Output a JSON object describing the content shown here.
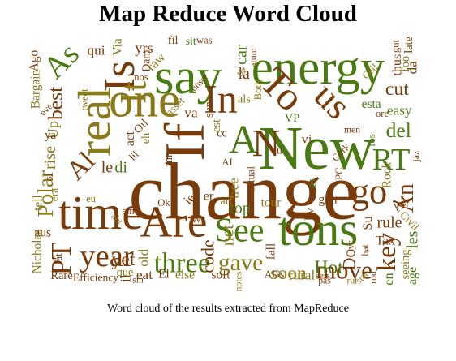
{
  "title": "Map Reduce Word Cloud",
  "caption": "Word cloud of the results extracted from MapReduce",
  "chart_data": {
    "type": "wordcloud",
    "title": "Map Reduce Word Cloud",
    "words": [
      {
        "text": "change",
        "weight": 100,
        "rotation": 0,
        "color": "#7a3b0a"
      },
      {
        "text": "New",
        "weight": 74,
        "rotation": 0,
        "color": "#4a7a12"
      },
      {
        "text": "If",
        "weight": 68,
        "rotation": -90,
        "color": "#7a3b0a"
      },
      {
        "text": "say",
        "weight": 60,
        "rotation": 0,
        "color": "#4a7a12"
      },
      {
        "text": "energy",
        "weight": 58,
        "rotation": 0,
        "color": "#4a7a12"
      },
      {
        "text": "one",
        "weight": 58,
        "rotation": 0,
        "color": "#8a7a1a"
      },
      {
        "text": "time",
        "weight": 56,
        "rotation": 0,
        "color": "#7a3b0a"
      },
      {
        "text": "real",
        "weight": 54,
        "rotation": -90,
        "color": "#8a7a1a"
      },
      {
        "text": "tons",
        "weight": 56,
        "rotation": 0,
        "color": "#4a7a12"
      },
      {
        "text": "Are",
        "weight": 52,
        "rotation": 0,
        "color": "#7a3b0a"
      },
      {
        "text": "Is",
        "weight": 50,
        "rotation": -90,
        "color": "#7a3b0a"
      },
      {
        "text": "It",
        "weight": 42,
        "rotation": -90,
        "color": "#8a7a1a"
      },
      {
        "text": "In",
        "weight": 46,
        "rotation": 0,
        "color": "#7a3b0a"
      },
      {
        "text": "To",
        "weight": 46,
        "rotation": 45,
        "color": "#7a3b0a"
      },
      {
        "text": "us",
        "weight": 42,
        "rotation": 45,
        "color": "#7a3b0a"
      },
      {
        "text": "A",
        "weight": 46,
        "rotation": 0,
        "color": "#4a7a12"
      },
      {
        "text": "N",
        "weight": 44,
        "rotation": 0,
        "color": "#7a3b0a"
      },
      {
        "text": "go",
        "weight": 40,
        "rotation": 0,
        "color": "#7a3b0a"
      },
      {
        "text": "RT",
        "weight": 34,
        "rotation": 0,
        "color": "#4a7a12"
      },
      {
        "text": "See",
        "weight": 38,
        "rotation": 0,
        "color": "#4a7a12"
      },
      {
        "text": "year",
        "weight": 34,
        "rotation": 0,
        "color": "#7a3b0a"
      },
      {
        "text": "three",
        "weight": 30,
        "rotation": 0,
        "color": "#4a7a12"
      },
      {
        "text": "move",
        "weight": 26,
        "rotation": 0,
        "color": "#7a3b0a"
      },
      {
        "text": "As",
        "weight": 34,
        "rotation": -45,
        "color": "#4a7a12"
      },
      {
        "text": "Al",
        "weight": 28,
        "rotation": -45,
        "color": "#7a3b0a"
      },
      {
        "text": "PT",
        "weight": 30,
        "rotation": -90,
        "color": "#7a3b0a"
      },
      {
        "text": "key",
        "weight": 28,
        "rotation": -90,
        "color": "#7a3b0a"
      },
      {
        "text": "gave",
        "weight": 24,
        "rotation": 0,
        "color": "#8a7a1a"
      },
      {
        "text": "An",
        "weight": 24,
        "rotation": -90,
        "color": "#7a3b0a"
      },
      {
        "text": "Polar",
        "weight": 22,
        "rotation": -90,
        "color": "#8a7a1a"
      },
      {
        "text": "best",
        "weight": 20,
        "rotation": -90,
        "color": "#7a3b0a"
      },
      {
        "text": "del",
        "weight": 20,
        "rotation": 0,
        "color": "#4a7a12"
      },
      {
        "text": "cut",
        "weight": 18,
        "rotation": 0,
        "color": "#7a3b0a"
      },
      {
        "text": "soon",
        "weight": 18,
        "rotation": 0,
        "color": "#8a7a1a"
      },
      {
        "text": "Hot",
        "weight": 18,
        "rotation": 0,
        "color": "#4a7a12"
      },
      {
        "text": "yet",
        "weight": 18,
        "rotation": 0,
        "color": "#7a3b0a"
      },
      {
        "text": "code",
        "weight": 16,
        "rotation": -90,
        "color": "#7a3b0a"
      },
      {
        "text": "net",
        "weight": 16,
        "rotation": -90,
        "color": "#8a7a1a"
      },
      {
        "text": "rule",
        "weight": 14,
        "rotation": 0,
        "color": "#7a3b0a"
      },
      {
        "text": "top",
        "weight": 14,
        "rotation": 0,
        "color": "#4a7a12"
      },
      {
        "text": "Do",
        "weight": 16,
        "rotation": -90,
        "color": "#7a3b0a"
      },
      {
        "text": "At",
        "weight": 16,
        "rotation": -45,
        "color": "#7a3b0a"
      },
      {
        "text": "les",
        "weight": 14,
        "rotation": -90,
        "color": "#4a7a12"
      },
      {
        "text": "rise",
        "weight": 14,
        "rotation": -90,
        "color": "#8a7a1a"
      },
      {
        "text": "la",
        "weight": 14,
        "rotation": 0,
        "color": "#7a3b0a"
      },
      {
        "text": "car",
        "weight": 14,
        "rotation": -90,
        "color": "#4a7a12"
      },
      {
        "text": "Up",
        "weight": 12,
        "rotation": -90,
        "color": "#8a7a1a"
      },
      {
        "text": "le",
        "weight": 14,
        "rotation": 0,
        "color": "#7a3b0a"
      },
      {
        "text": "yrs",
        "weight": 12,
        "rotation": 0,
        "color": "#7a3b0a"
      },
      {
        "text": "di",
        "weight": 14,
        "rotation": 0,
        "color": "#4a7a12"
      },
      {
        "text": "va",
        "weight": 11,
        "rotation": 0,
        "color": "#7a3b0a"
      },
      {
        "text": "qui",
        "weight": 11,
        "rotation": 0,
        "color": "#7a3b0a"
      },
      {
        "text": "raw",
        "weight": 10,
        "rotation": -45,
        "color": "#8a7a1a"
      },
      {
        "text": "eat",
        "weight": 11,
        "rotation": 0,
        "color": "#7a3b0a"
      },
      {
        "text": "tree",
        "weight": 11,
        "rotation": -90,
        "color": "#8a7a1a"
      },
      {
        "text": "old",
        "weight": 11,
        "rotation": -90,
        "color": "#8a7a1a"
      },
      {
        "text": "il",
        "weight": 12,
        "rotation": -90,
        "color": "#7a3b0a"
      },
      {
        "text": "rural",
        "weight": 11,
        "rotation": 0,
        "color": "#8a7a1a"
      },
      {
        "text": "age",
        "weight": 10,
        "rotation": -90,
        "color": "#4a7a12"
      },
      {
        "text": "Tax",
        "weight": 10,
        "rotation": 0,
        "color": "#7a3b0a"
      },
      {
        "text": "easy",
        "weight": 11,
        "rotation": 0,
        "color": "#4a7a12"
      },
      {
        "text": "thus",
        "weight": 10,
        "rotation": -90,
        "color": "#7a3b0a"
      },
      {
        "text": "esta",
        "weight": 9,
        "rotation": 0,
        "color": "#4a7a12"
      },
      {
        "text": "da",
        "weight": 11,
        "rotation": -90,
        "color": "#7a3b0a"
      },
      {
        "text": "Via",
        "weight": 9,
        "rotation": -90,
        "color": "#8a7a1a"
      },
      {
        "text": "aus",
        "weight": 9,
        "rotation": 0,
        "color": "#7a3b0a"
      },
      {
        "text": "act",
        "weight": 9,
        "rotation": -90,
        "color": "#7a3b0a"
      },
      {
        "text": "tell",
        "weight": 9,
        "rotation": -90,
        "color": "#8a7a1a"
      },
      {
        "text": "Nicholas",
        "weight": 9,
        "rotation": -90,
        "color": "#8a7a1a"
      },
      {
        "text": "Bargain",
        "weight": 9,
        "rotation": -90,
        "color": "#8a7a1a"
      },
      {
        "text": "Ago",
        "weight": 9,
        "rotation": -90,
        "color": "#7a3b0a"
      },
      {
        "text": "Rare",
        "weight": 8,
        "rotation": 0,
        "color": "#7a3b0a"
      },
      {
        "text": "Efficiency",
        "weight": 7,
        "rotation": 0,
        "color": "#7a3b0a"
      },
      {
        "text": "que",
        "weight": 8,
        "rotation": 0,
        "color": "#8a7a1a"
      },
      {
        "text": "El",
        "weight": 9,
        "rotation": 0,
        "color": "#7a3b0a"
      },
      {
        "text": "else",
        "weight": 9,
        "rotation": 0,
        "color": "#8a7a1a"
      },
      {
        "text": "soft",
        "weight": 9,
        "rotation": 0,
        "color": "#7a3b0a"
      },
      {
        "text": "AGs",
        "weight": 7,
        "rotation": 0,
        "color": "#7a3b0a"
      },
      {
        "text": "Rock",
        "weight": 9,
        "rotation": -90,
        "color": "#8a7a1a"
      },
      {
        "text": "seeing",
        "weight": 8,
        "rotation": -90,
        "color": "#8a7a1a"
      },
      {
        "text": "Civil",
        "weight": 7,
        "rotation": 45,
        "color": "#8a7a1a"
      },
      {
        "text": "late",
        "weight": 8,
        "rotation": -90,
        "color": "#7a3b0a"
      },
      {
        "text": "Too",
        "weight": 8,
        "rotation": -90,
        "color": "#8a7a1a"
      },
      {
        "text": "fall",
        "weight": 9,
        "rotation": -90,
        "color": "#7a3b0a"
      },
      {
        "text": "tour",
        "weight": 9,
        "rotation": 0,
        "color": "#8a7a1a"
      },
      {
        "text": "gun",
        "weight": 9,
        "rotation": 0,
        "color": "#7a3b0a"
      },
      {
        "text": "en",
        "weight": 10,
        "rotation": -90,
        "color": "#4a7a12"
      },
      {
        "text": "hv",
        "weight": 9,
        "rotation": -90,
        "color": "#7a3b0a"
      },
      {
        "text": "Su",
        "weight": 10,
        "rotation": -90,
        "color": "#7a3b0a"
      },
      {
        "text": "mn",
        "weight": 8,
        "rotation": -90,
        "color": "#7a3b0a"
      },
      {
        "text": "eh",
        "weight": 8,
        "rotation": -90,
        "color": "#8a7a1a"
      },
      {
        "text": "er",
        "weight": 10,
        "rotation": 0,
        "color": "#7a3b0a"
      },
      {
        "text": "art",
        "weight": 8,
        "rotation": 0,
        "color": "#8a7a1a"
      },
      {
        "text": "ie",
        "weight": 10,
        "rotation": -45,
        "color": "#7a3b0a"
      },
      {
        "text": "es",
        "weight": 8,
        "rotation": -90,
        "color": "#4a7a12"
      },
      {
        "text": "Wr",
        "weight": 7,
        "rotation": 0,
        "color": "#7a3b0a"
      },
      {
        "text": "cc",
        "weight": 8,
        "rotation": 0,
        "color": "#7a3b0a"
      },
      {
        "text": "als",
        "weight": 8,
        "rotation": 0,
        "color": "#8a7a1a"
      },
      {
        "text": "du",
        "weight": 7,
        "rotation": 0,
        "color": "#7a3b0a"
      },
      {
        "text": "est",
        "weight": 8,
        "rotation": -90,
        "color": "#8a7a1a"
      },
      {
        "text": "sun",
        "weight": 8,
        "rotation": -90,
        "color": "#7a3b0a"
      },
      {
        "text": "VP",
        "weight": 8,
        "rotation": 0,
        "color": "#4a7a12"
      },
      {
        "text": "vi",
        "weight": 10,
        "rotation": 0,
        "color": "#7a3b0a"
      },
      {
        "text": "asset",
        "weight": 7,
        "rotation": -45,
        "color": "#8a7a1a"
      },
      {
        "text": "Darn",
        "weight": 7,
        "rotation": -90,
        "color": "#7a3b0a"
      },
      {
        "text": "fil",
        "weight": 8,
        "rotation": 0,
        "color": "#7a3b0a"
      },
      {
        "text": "sit",
        "weight": 7,
        "rotation": 0,
        "color": "#4a7a12"
      },
      {
        "text": "ya",
        "weight": 8,
        "rotation": 0,
        "color": "#7a3b0a"
      },
      {
        "text": "era",
        "weight": 7,
        "rotation": -90,
        "color": "#8a7a1a"
      },
      {
        "text": "PC",
        "weight": 6,
        "rotation": -90,
        "color": "#7a3b0a"
      },
      {
        "text": "Cork",
        "weight": 6,
        "rotation": -45,
        "color": "#7a3b0a"
      },
      {
        "text": "actual",
        "weight": 7,
        "rotation": -90,
        "color": "#7a3b0a"
      },
      {
        "text": "Oil",
        "weight": 8,
        "rotation": -45,
        "color": "#7a3b0a"
      },
      {
        "text": "tweet",
        "weight": 6,
        "rotation": -90,
        "color": "#8a7a1a"
      },
      {
        "text": "nos",
        "weight": 6,
        "rotation": 0,
        "color": "#7a3b0a"
      },
      {
        "text": "tiz",
        "weight": 6,
        "rotation": -45,
        "color": "#8a7a1a"
      },
      {
        "text": "Both",
        "weight": 6,
        "rotation": -90,
        "color": "#8a7a1a"
      },
      {
        "text": "atum",
        "weight": 5,
        "rotation": -90,
        "color": "#7a3b0a"
      },
      {
        "text": "gut",
        "weight": 6,
        "rotation": -90,
        "color": "#7a3b0a"
      },
      {
        "text": "Cell",
        "weight": 6,
        "rotation": -45,
        "color": "#8a7a1a"
      },
      {
        "text": "ore",
        "weight": 6,
        "rotation": 0,
        "color": "#7a3b0a"
      },
      {
        "text": "fos",
        "weight": 6,
        "rotation": -90,
        "color": "#4a7a12"
      },
      {
        "text": "unser",
        "weight": 5,
        "rotation": -45,
        "color": "#7a3b0a"
      },
      {
        "text": "was",
        "weight": 6,
        "rotation": 0,
        "color": "#7a3b0a"
      },
      {
        "text": "men",
        "weight": 5,
        "rotation": 0,
        "color": "#7a3b0a"
      },
      {
        "text": "pas",
        "weight": 5,
        "rotation": 0,
        "color": "#7a3b0a"
      },
      {
        "text": "sets",
        "weight": 5,
        "rotation": 0,
        "color": "#7a3b0a"
      },
      {
        "text": "sin",
        "weight": 5,
        "rotation": 0,
        "color": "#7a3b0a"
      },
      {
        "text": "notes",
        "weight": 5,
        "rotation": -90,
        "color": "#8a7a1a"
      },
      {
        "text": "hat",
        "weight": 5,
        "rotation": -90,
        "color": "#7a3b0a"
      },
      {
        "text": "rod",
        "weight": 5,
        "rotation": -90,
        "color": "#7a3b0a"
      },
      {
        "text": "stat",
        "weight": 5,
        "rotation": -45,
        "color": "#8a7a1a"
      },
      {
        "text": "eve",
        "weight": 5,
        "rotation": -45,
        "color": "#7a3b0a"
      },
      {
        "text": "lil",
        "weight": 6,
        "rotation": -45,
        "color": "#7a3b0a"
      },
      {
        "text": "fat",
        "weight": 6,
        "rotation": -90,
        "color": "#7a3b0a"
      },
      {
        "text": "yr",
        "weight": 6,
        "rotation": -90,
        "color": "#7a3b0a"
      },
      {
        "text": "rut",
        "weight": 5,
        "rotation": 0,
        "color": "#8a7a1a"
      },
      {
        "text": "si",
        "weight": 6,
        "rotation": -90,
        "color": "#7a3b0a"
      },
      {
        "text": "ein",
        "weight": 6,
        "rotation": 0,
        "color": "#7a3b0a"
      },
      {
        "text": "Ok",
        "weight": 6,
        "rotation": 0,
        "color": "#7a3b0a"
      },
      {
        "text": "eu",
        "weight": 6,
        "rotation": 0,
        "color": "#8a7a1a"
      },
      {
        "text": "jaz",
        "weight": 5,
        "rotation": -90,
        "color": "#7a3b0a"
      },
      {
        "text": "abt",
        "weight": 5,
        "rotation": 45,
        "color": "#8a7a1a"
      },
      {
        "text": "AI",
        "weight": 6,
        "rotation": 0,
        "color": "#7a3b0a"
      }
    ]
  }
}
